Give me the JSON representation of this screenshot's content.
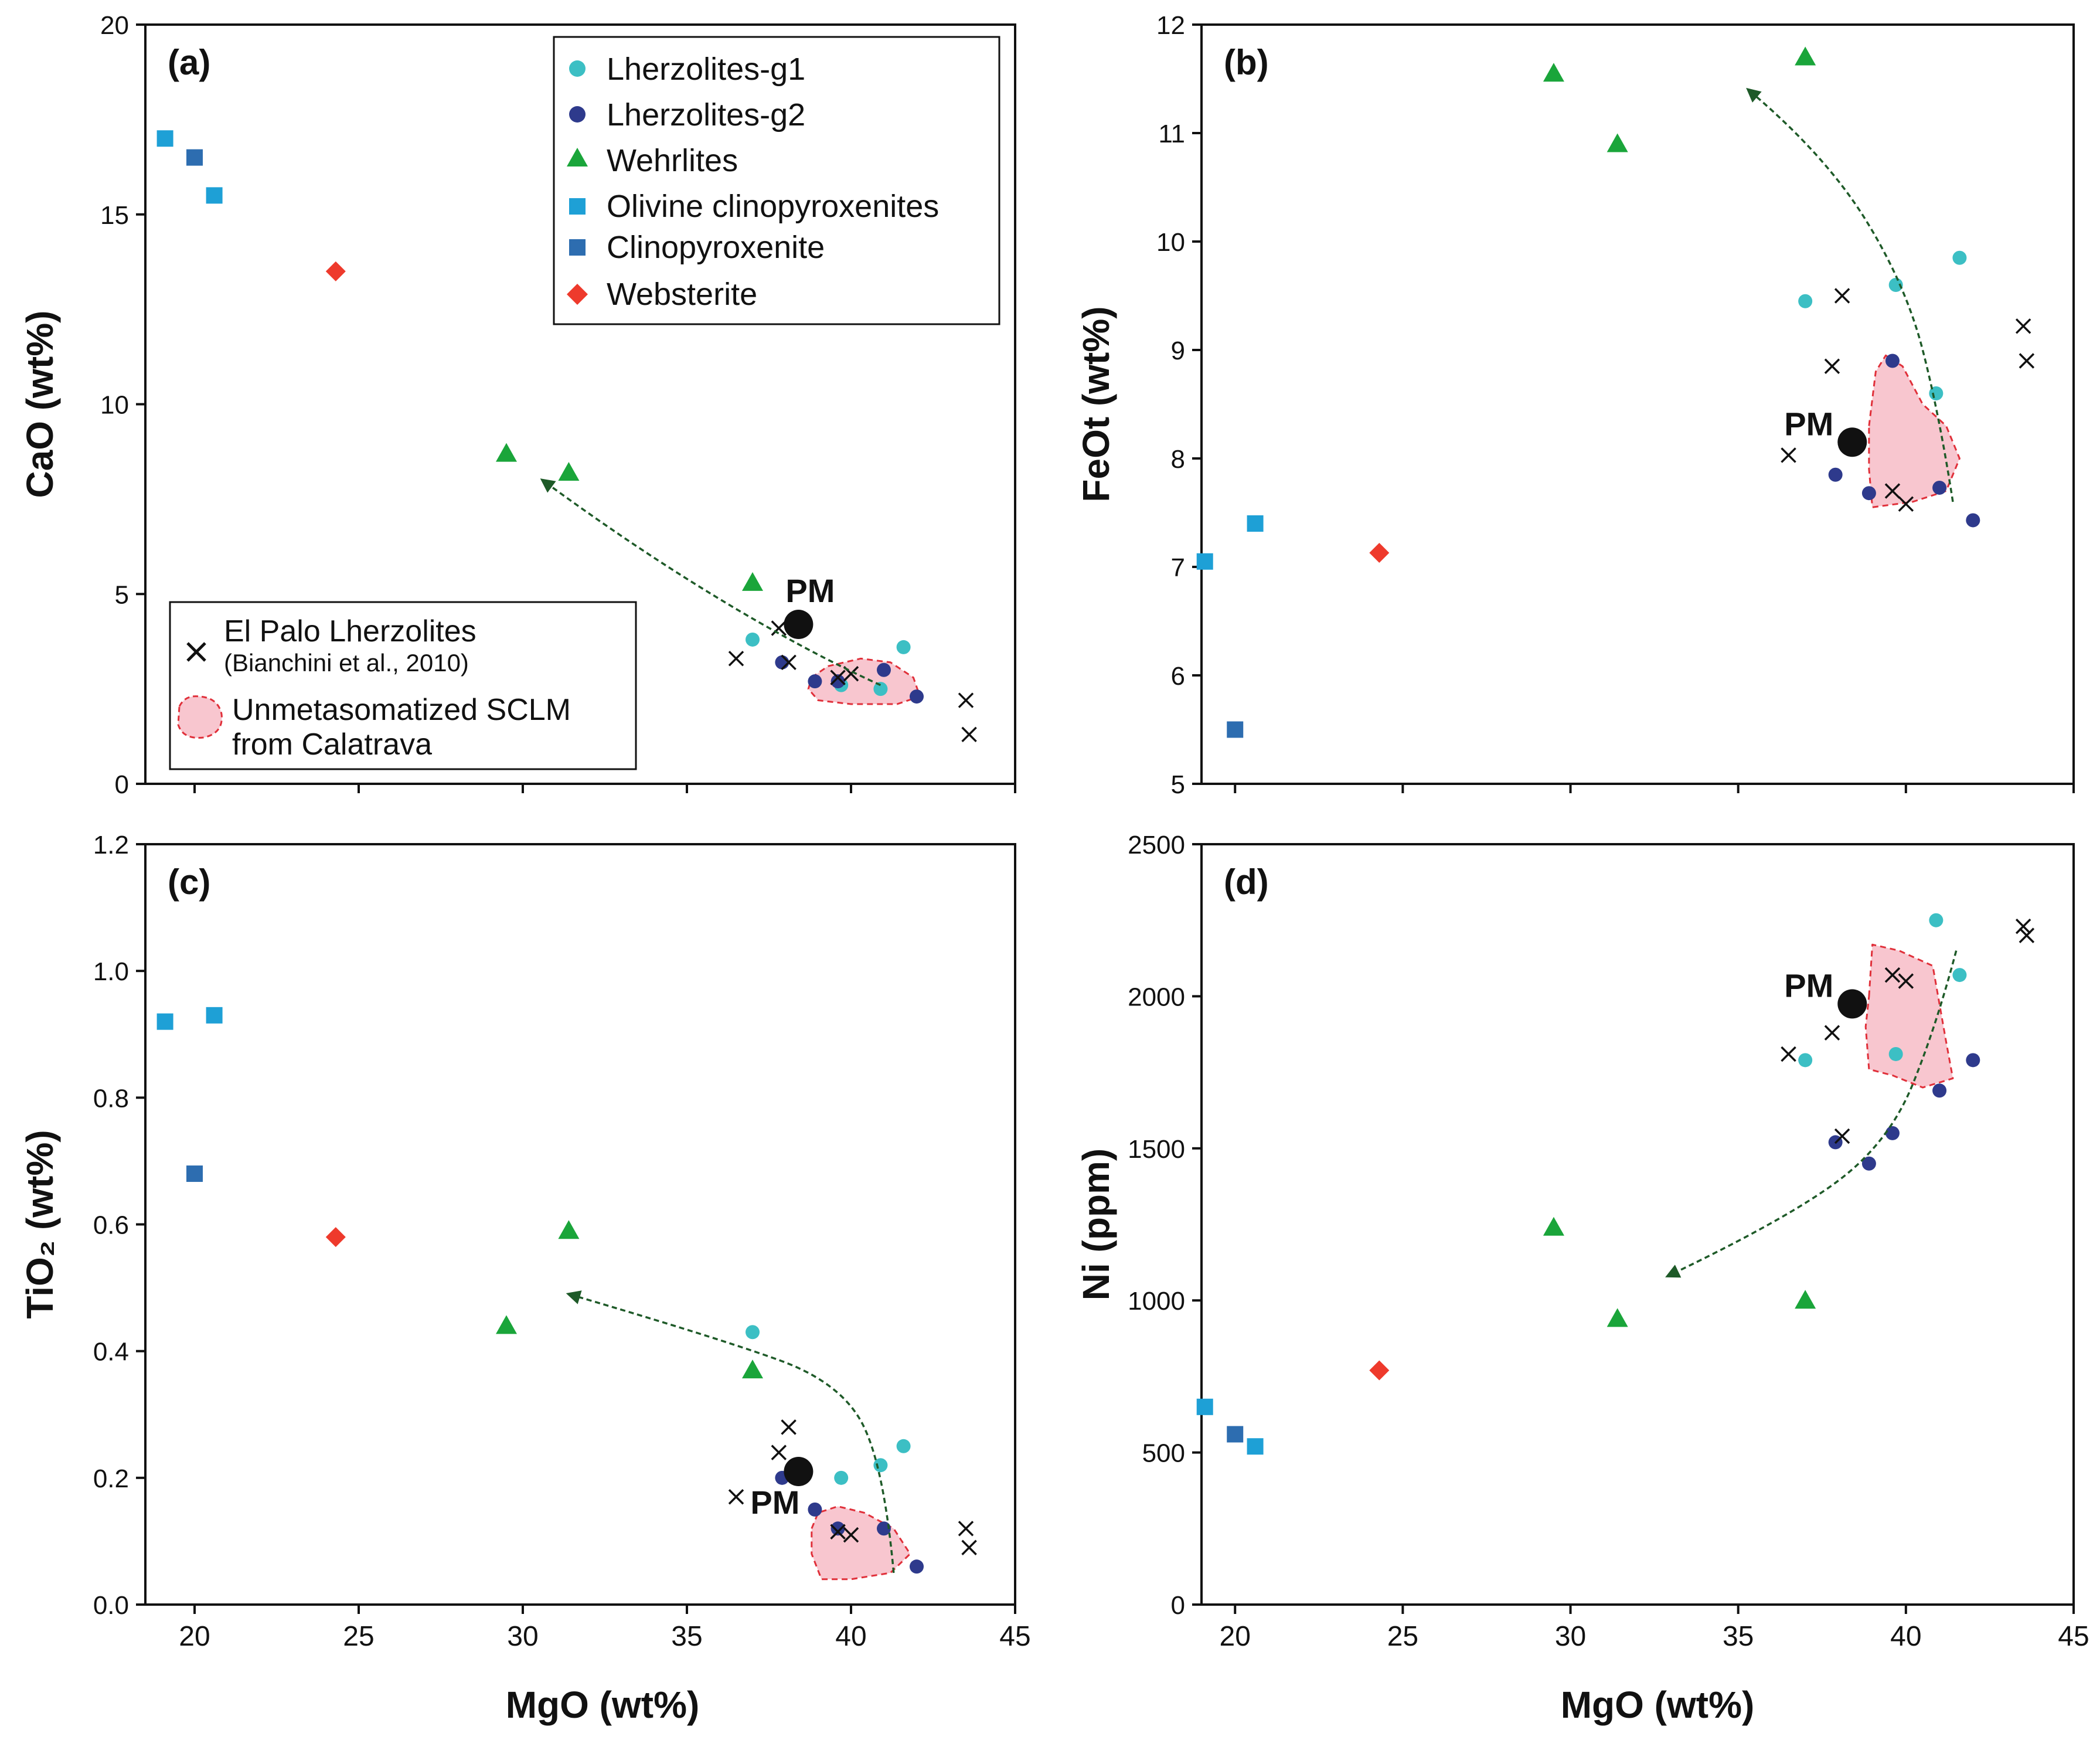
{
  "figure": {
    "x_axis_label": "MgO (wt%)",
    "pm_label": "PM"
  },
  "legend": {
    "main": [
      {
        "label": "Lherzolites-g1",
        "symbol": "circle",
        "color": "#3cbfc4"
      },
      {
        "label": "Lherzolites-g2",
        "symbol": "circle",
        "color": "#2e3a8c"
      },
      {
        "label": "Wehrlites",
        "symbol": "triangle",
        "color": "#1aa53a"
      },
      {
        "label": "Olivine clinopyroxenites",
        "symbol": "square",
        "color": "#1ea0d6"
      },
      {
        "label": "Clinopyroxenite",
        "symbol": "square",
        "color": "#2d6db0"
      },
      {
        "label": "Websterite",
        "symbol": "diamond",
        "color": "#ee3a2c"
      }
    ],
    "secondary": {
      "xmark_label_line1": "El Palo Lherzolites",
      "xmark_label_line2": "(Bianchini et al., 2010)",
      "field_label_line1": "Unmetasomatized SCLM",
      "field_label_line2": "from Calatrava"
    }
  },
  "colors": {
    "lherz_g1": "#3cbfc4",
    "lherz_g2": "#2e3a8c",
    "wehrlite": "#1aa53a",
    "ol_cpx": "#1ea0d6",
    "cpx": "#2d6db0",
    "websterite": "#ee3a2c",
    "field_fill": "#f8c6cf",
    "field_stroke": "#e0303a",
    "arrow": "#1e5a28"
  },
  "chart_data": [
    {
      "type": "scatter",
      "panel_label": "(a)",
      "xlabel": "",
      "ylabel": "CaO (wt%)",
      "xlim": [
        18.5,
        45
      ],
      "ylim": [
        0,
        20
      ],
      "xticks": [
        20,
        25,
        30,
        35,
        40,
        45
      ],
      "yticks": [
        0,
        5,
        10,
        15,
        20
      ],
      "xtick_labels": [
        "",
        "",
        "",
        "",
        "",
        ""
      ],
      "ytick_labels": [
        "0",
        "5",
        "10",
        "15",
        "20"
      ],
      "pm": [
        38.4,
        4.2
      ],
      "pm_label_offset": "above",
      "series": [
        {
          "name": "Lherzolites-g1",
          "key": "lherz_g1",
          "points": [
            [
              37.0,
              3.8
            ],
            [
              39.7,
              2.6
            ],
            [
              40.9,
              2.5
            ],
            [
              41.6,
              3.6
            ]
          ]
        },
        {
          "name": "Lherzolites-g2",
          "key": "lherz_g2",
          "points": [
            [
              37.9,
              3.2
            ],
            [
              38.9,
              2.7
            ],
            [
              39.6,
              2.7
            ],
            [
              41.0,
              3.0
            ],
            [
              42.0,
              2.3
            ]
          ]
        },
        {
          "name": "Wehrlites",
          "key": "wehrlite",
          "points": [
            [
              29.5,
              8.7
            ],
            [
              31.4,
              8.2
            ],
            [
              37.0,
              5.3
            ]
          ]
        },
        {
          "name": "Olivine clinopyroxenites",
          "key": "ol_cpx",
          "points": [
            [
              19.1,
              17.0
            ],
            [
              20.6,
              15.5
            ]
          ]
        },
        {
          "name": "Clinopyroxenite",
          "key": "cpx",
          "points": [
            [
              20.0,
              16.5
            ]
          ]
        },
        {
          "name": "Websterite",
          "key": "websterite",
          "points": [
            [
              24.3,
              13.5
            ]
          ]
        },
        {
          "name": "El Palo Lherzolites",
          "key": "xmark",
          "points": [
            [
              36.5,
              3.3
            ],
            [
              37.8,
              4.1
            ],
            [
              38.1,
              3.2
            ],
            [
              39.6,
              2.8
            ],
            [
              40.0,
              2.9
            ],
            [
              43.5,
              2.2
            ],
            [
              43.6,
              1.3
            ]
          ]
        }
      ],
      "field": [
        [
          38.8,
          2.8
        ],
        [
          39.3,
          3.1
        ],
        [
          40.3,
          3.3
        ],
        [
          41.2,
          3.2
        ],
        [
          41.9,
          2.8
        ],
        [
          42.1,
          2.3
        ],
        [
          41.4,
          2.1
        ],
        [
          40.0,
          2.1
        ],
        [
          39.0,
          2.2
        ],
        [
          38.7,
          2.5
        ]
      ],
      "arrow": [
        [
          40.9,
          2.6
        ],
        [
          38.6,
          3.5
        ],
        [
          35.0,
          5.2
        ],
        [
          30.6,
          8.0
        ]
      ]
    },
    {
      "type": "scatter",
      "panel_label": "(b)",
      "xlabel": "",
      "ylabel": "FeOt (wt%)",
      "xlim": [
        19,
        45
      ],
      "ylim": [
        5,
        12
      ],
      "xticks": [
        20,
        25,
        30,
        35,
        40,
        45
      ],
      "yticks": [
        5,
        6,
        7,
        8,
        9,
        10,
        11,
        12
      ],
      "xtick_labels": [
        "",
        "",
        "",
        "",
        "",
        ""
      ],
      "ytick_labels": [
        "5",
        "6",
        "7",
        "8",
        "9",
        "10",
        "11",
        "12"
      ],
      "pm": [
        38.4,
        8.15
      ],
      "pm_label_offset": "left",
      "series": [
        {
          "name": "Lherzolites-g1",
          "key": "lherz_g1",
          "points": [
            [
              37.0,
              9.45
            ],
            [
              39.7,
              9.6
            ],
            [
              40.9,
              8.6
            ],
            [
              41.6,
              9.85
            ]
          ]
        },
        {
          "name": "Lherzolites-g2",
          "key": "lherz_g2",
          "points": [
            [
              37.9,
              7.85
            ],
            [
              38.9,
              7.68
            ],
            [
              39.6,
              8.9
            ],
            [
              41.0,
              7.73
            ],
            [
              42.0,
              7.43
            ]
          ]
        },
        {
          "name": "Wehrlites",
          "key": "wehrlite",
          "points": [
            [
              29.5,
              11.55
            ],
            [
              31.4,
              10.9
            ],
            [
              37.0,
              11.7
            ]
          ]
        },
        {
          "name": "Olivine clinopyroxenites",
          "key": "ol_cpx",
          "points": [
            [
              19.1,
              7.05
            ],
            [
              20.6,
              7.4
            ]
          ]
        },
        {
          "name": "Clinopyroxenite",
          "key": "cpx",
          "points": [
            [
              20.0,
              5.5
            ]
          ]
        },
        {
          "name": "Websterite",
          "key": "websterite",
          "points": [
            [
              24.3,
              7.13
            ]
          ]
        },
        {
          "name": "El Palo Lherzolites",
          "key": "xmark",
          "points": [
            [
              36.5,
              8.03
            ],
            [
              37.8,
              8.85
            ],
            [
              38.1,
              9.5
            ],
            [
              39.6,
              7.7
            ],
            [
              40.0,
              7.58
            ],
            [
              43.5,
              9.22
            ],
            [
              43.6,
              8.9
            ]
          ]
        }
      ],
      "field": [
        [
          38.9,
          8.3
        ],
        [
          39.1,
          8.8
        ],
        [
          39.4,
          8.95
        ],
        [
          39.9,
          8.85
        ],
        [
          40.5,
          8.5
        ],
        [
          41.2,
          8.3
        ],
        [
          41.6,
          8.0
        ],
        [
          41.2,
          7.7
        ],
        [
          40.2,
          7.6
        ],
        [
          39.0,
          7.55
        ],
        [
          38.9,
          7.9
        ]
      ],
      "arrow": [
        [
          41.4,
          7.6
        ],
        [
          41.0,
          8.4
        ],
        [
          40.0,
          9.6
        ],
        [
          37.6,
          10.8
        ],
        [
          35.3,
          11.4
        ]
      ]
    },
    {
      "type": "scatter",
      "panel_label": "(c)",
      "xlabel": "MgO (wt%)",
      "ylabel": "TiO₂ (wt%)",
      "xlim": [
        18.5,
        45
      ],
      "ylim": [
        0,
        1.2
      ],
      "xticks": [
        20,
        25,
        30,
        35,
        40,
        45
      ],
      "yticks": [
        0,
        0.2,
        0.4,
        0.6,
        0.8,
        1.0,
        1.2
      ],
      "xtick_labels": [
        "20",
        "25",
        "30",
        "35",
        "40",
        "45"
      ],
      "ytick_labels": [
        "0.0",
        "0.2",
        "0.4",
        "0.6",
        "0.8",
        "1.0",
        "1.2"
      ],
      "pm": [
        38.4,
        0.21
      ],
      "pm_label_offset": "below-left",
      "series": [
        {
          "name": "Lherzolites-g1",
          "key": "lherz_g1",
          "points": [
            [
              37.0,
              0.43
            ],
            [
              39.7,
              0.2
            ],
            [
              40.9,
              0.22
            ],
            [
              41.6,
              0.25
            ]
          ]
        },
        {
          "name": "Lherzolites-g2",
          "key": "lherz_g2",
          "points": [
            [
              37.9,
              0.2
            ],
            [
              38.9,
              0.15
            ],
            [
              39.6,
              0.12
            ],
            [
              41.0,
              0.12
            ],
            [
              42.0,
              0.06
            ]
          ]
        },
        {
          "name": "Wehrlites",
          "key": "wehrlite",
          "points": [
            [
              29.5,
              0.44
            ],
            [
              31.4,
              0.59
            ],
            [
              37.0,
              0.37
            ]
          ]
        },
        {
          "name": "Olivine clinopyroxenites",
          "key": "ol_cpx",
          "points": [
            [
              19.1,
              0.92
            ],
            [
              20.6,
              0.93
            ]
          ]
        },
        {
          "name": "Clinopyroxenite",
          "key": "cpx",
          "points": [
            [
              20.0,
              0.68
            ]
          ]
        },
        {
          "name": "Websterite",
          "key": "websterite",
          "points": [
            [
              24.3,
              0.58
            ]
          ]
        },
        {
          "name": "El Palo Lherzolites",
          "key": "xmark",
          "points": [
            [
              36.5,
              0.17
            ],
            [
              37.8,
              0.24
            ],
            [
              38.1,
              0.28
            ],
            [
              39.6,
              0.115
            ],
            [
              40.0,
              0.11
            ],
            [
              43.5,
              0.12
            ],
            [
              43.6,
              0.09
            ]
          ]
        }
      ],
      "field": [
        [
          38.8,
          0.12
        ],
        [
          39.0,
          0.145
        ],
        [
          39.6,
          0.155
        ],
        [
          40.4,
          0.145
        ],
        [
          41.3,
          0.12
        ],
        [
          41.8,
          0.08
        ],
        [
          41.2,
          0.05
        ],
        [
          40.0,
          0.04
        ],
        [
          39.1,
          0.04
        ],
        [
          38.8,
          0.08
        ]
      ],
      "arrow": [
        [
          41.3,
          0.05
        ],
        [
          41.0,
          0.22
        ],
        [
          39.7,
          0.35
        ],
        [
          36.0,
          0.42
        ],
        [
          31.4,
          0.49
        ]
      ]
    },
    {
      "type": "scatter",
      "panel_label": "(d)",
      "xlabel": "MgO (wt%)",
      "ylabel": "Ni (ppm)",
      "xlim": [
        19,
        45
      ],
      "ylim": [
        0,
        2500
      ],
      "xticks": [
        20,
        25,
        30,
        35,
        40,
        45
      ],
      "yticks": [
        0,
        500,
        1000,
        1500,
        2000,
        2500
      ],
      "xtick_labels": [
        "20",
        "25",
        "30",
        "35",
        "40",
        "45"
      ],
      "ytick_labels": [
        "0",
        "500",
        "1000",
        "1500",
        "2000",
        "2500"
      ],
      "pm": [
        38.4,
        1975
      ],
      "pm_label_offset": "left",
      "series": [
        {
          "name": "Lherzolites-g1",
          "key": "lherz_g1",
          "points": [
            [
              37.0,
              1790
            ],
            [
              39.7,
              1810
            ],
            [
              40.9,
              2250
            ],
            [
              41.6,
              2070
            ]
          ]
        },
        {
          "name": "Lherzolites-g2",
          "key": "lherz_g2",
          "points": [
            [
              37.9,
              1520
            ],
            [
              38.9,
              1450
            ],
            [
              39.6,
              1550
            ],
            [
              41.0,
              1690
            ],
            [
              42.0,
              1790
            ]
          ]
        },
        {
          "name": "Wehrlites",
          "key": "wehrlite",
          "points": [
            [
              29.5,
              1240
            ],
            [
              31.4,
              940
            ],
            [
              37.0,
              1000
            ]
          ]
        },
        {
          "name": "Olivine clinopyroxenites",
          "key": "ol_cpx",
          "points": [
            [
              19.1,
              650
            ],
            [
              20.6,
              520
            ]
          ]
        },
        {
          "name": "Clinopyroxenite",
          "key": "cpx",
          "points": [
            [
              20.0,
              560
            ]
          ]
        },
        {
          "name": "Websterite",
          "key": "websterite",
          "points": [
            [
              24.3,
              770
            ]
          ]
        },
        {
          "name": "El Palo Lherzolites",
          "key": "xmark",
          "points": [
            [
              36.5,
              1810
            ],
            [
              37.8,
              1880
            ],
            [
              38.1,
              1540
            ],
            [
              39.6,
              2070
            ],
            [
              40.0,
              2050
            ],
            [
              43.5,
              2230
            ],
            [
              43.6,
              2200
            ]
          ]
        }
      ],
      "field": [
        [
          38.9,
          2000
        ],
        [
          39.0,
          2170
        ],
        [
          39.8,
          2150
        ],
        [
          40.8,
          2100
        ],
        [
          41.2,
          1850
        ],
        [
          41.4,
          1730
        ],
        [
          40.5,
          1700
        ],
        [
          39.6,
          1740
        ],
        [
          38.9,
          1760
        ],
        [
          38.8,
          1900
        ]
      ],
      "arrow": [
        [
          41.5,
          2150
        ],
        [
          40.9,
          1900
        ],
        [
          39.5,
          1520
        ],
        [
          36.5,
          1270
        ],
        [
          32.9,
          1080
        ]
      ]
    }
  ]
}
